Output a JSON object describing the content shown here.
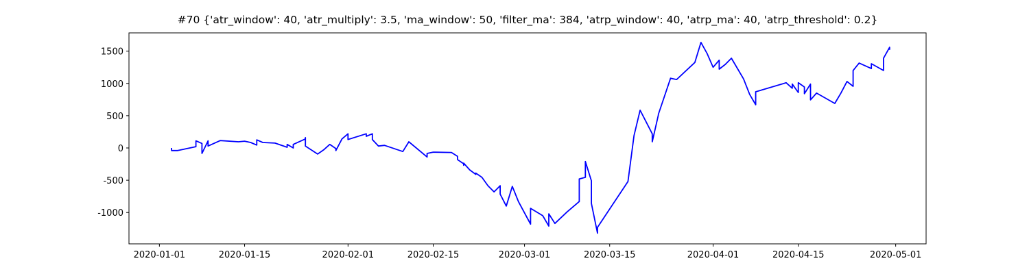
{
  "chart_data": {
    "type": "line",
    "title": "#70 {'atr_window': 40, 'atr_multiply': 3.5, 'ma_window': 50, 'filter_ma': 384, 'atrp_window': 40, 'atrp_ma': 40, 'atrp_threshold': 0.2}",
    "x": [
      "2020-01-03",
      "2020-01-03",
      "2020-01-04",
      "2020-01-07",
      "2020-01-07",
      "2020-01-08",
      "2020-01-08",
      "2020-01-09",
      "2020-01-09",
      "2020-01-11",
      "2020-01-14",
      "2020-01-15",
      "2020-01-16",
      "2020-01-17",
      "2020-01-17",
      "2020-01-18",
      "2020-01-20",
      "2020-01-22",
      "2020-01-22",
      "2020-01-23",
      "2020-01-23",
      "2020-01-25",
      "2020-01-25",
      "2020-01-25",
      "2020-01-27",
      "2020-01-28",
      "2020-01-29",
      "2020-01-30",
      "2020-01-30",
      "2020-01-31",
      "2020-02-01",
      "2020-02-01",
      "2020-02-04",
      "2020-02-04",
      "2020-02-05",
      "2020-02-05",
      "2020-02-06",
      "2020-02-07",
      "2020-02-10",
      "2020-02-11",
      "2020-02-14",
      "2020-02-14",
      "2020-02-15",
      "2020-02-18",
      "2020-02-19",
      "2020-02-19",
      "2020-02-20",
      "2020-02-20",
      "2020-02-20",
      "2020-02-21",
      "2020-02-22",
      "2020-02-22",
      "2020-02-23",
      "2020-02-24",
      "2020-02-25",
      "2020-02-26",
      "2020-02-26",
      "2020-02-27",
      "2020-02-28",
      "2020-02-29",
      "2020-03-02",
      "2020-03-02",
      "2020-03-04",
      "2020-03-05",
      "2020-03-05",
      "2020-03-06",
      "2020-03-08",
      "2020-03-10",
      "2020-03-10",
      "2020-03-11",
      "2020-03-11",
      "2020-03-12",
      "2020-03-12",
      "2020-03-13",
      "2020-03-13",
      "2020-03-18",
      "2020-03-19",
      "2020-03-20",
      "2020-03-22",
      "2020-03-22",
      "2020-03-23",
      "2020-03-23",
      "2020-03-25",
      "2020-03-26",
      "2020-03-29",
      "2020-03-30",
      "2020-03-31",
      "2020-04-01",
      "2020-04-02",
      "2020-04-02",
      "2020-04-03",
      "2020-04-04",
      "2020-04-06",
      "2020-04-07",
      "2020-04-08",
      "2020-04-08",
      "2020-04-13",
      "2020-04-14",
      "2020-04-14",
      "2020-04-15",
      "2020-04-15",
      "2020-04-16",
      "2020-04-16",
      "2020-04-17",
      "2020-04-17",
      "2020-04-18",
      "2020-04-21",
      "2020-04-22",
      "2020-04-23",
      "2020-04-24",
      "2020-04-24",
      "2020-04-25",
      "2020-04-27",
      "2020-04-27",
      "2020-04-29",
      "2020-04-29",
      "2020-04-30",
      "2020-04-30"
    ],
    "series": [
      {
        "color": "blue",
        "values": [
          0,
          -40,
          -40,
          20,
          110,
          70,
          -85,
          110,
          30,
          115,
          95,
          105,
          85,
          45,
          125,
          85,
          75,
          10,
          55,
          0,
          55,
          140,
          160,
          30,
          -95,
          -30,
          55,
          -10,
          -40,
          140,
          220,
          130,
          220,
          180,
          220,
          130,
          30,
          40,
          -55,
          95,
          -140,
          -85,
          -65,
          -70,
          -130,
          -180,
          -245,
          -270,
          -235,
          -340,
          -410,
          -390,
          -455,
          -585,
          -680,
          -585,
          -715,
          -900,
          -595,
          -830,
          -1180,
          -935,
          -1050,
          -1210,
          -1020,
          -1170,
          -990,
          -830,
          -480,
          -455,
          -210,
          -510,
          -860,
          -1320,
          -1230,
          -520,
          190,
          585,
          220,
          95,
          510,
          520,
          1080,
          1060,
          1325,
          1635,
          1465,
          1250,
          1360,
          1220,
          1295,
          1390,
          1070,
          830,
          670,
          870,
          1010,
          925,
          990,
          860,
          1010,
          945,
          840,
          990,
          745,
          850,
          690,
          850,
          1030,
          955,
          1200,
          1315,
          1230,
          1305,
          1200,
          1390,
          1560,
          1520
        ]
      }
    ],
    "xlim": [
      "2019-12-27",
      "2020-05-06"
    ],
    "xticks": [
      "2020-01-01",
      "2020-01-15",
      "2020-02-01",
      "2020-02-15",
      "2020-03-01",
      "2020-03-15",
      "2020-04-01",
      "2020-04-15",
      "2020-05-01"
    ],
    "ylim": [
      -1486,
      1783
    ],
    "yticks": [
      -1000,
      -500,
      0,
      500,
      1000,
      1500
    ]
  }
}
